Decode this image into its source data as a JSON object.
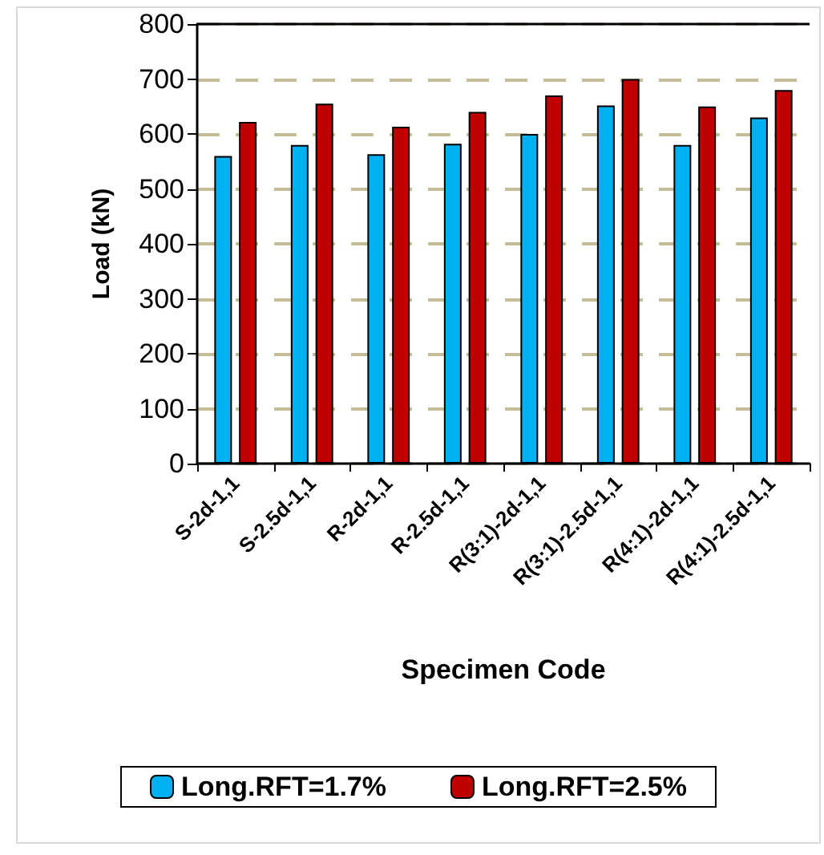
{
  "chart_data": {
    "type": "bar",
    "xlabel": "Specimen Code",
    "ylabel": "Load (kN)",
    "categories": [
      "S-2d-1,1",
      "S-2.5d-1,1",
      "R-2d-1,1",
      "R-2.5d-1,1",
      "R(3:1)-2d-1,1",
      "R(3:1)-2.5d-1,1",
      "R(4:1)-2d-1,1",
      "R(4:1)-2.5d-1,1"
    ],
    "series": [
      {
        "name": "Long.RFT=1.7%",
        "color": "#00b0f0",
        "values": [
          560,
          580,
          563,
          582,
          600,
          652,
          580,
          630
        ]
      },
      {
        "name": "Long.RFT=2.5%",
        "color": "#c00000",
        "values": [
          622,
          655,
          613,
          640,
          670,
          700,
          650,
          680
        ]
      }
    ],
    "ylim": [
      0,
      800
    ],
    "yticks": [
      0,
      100,
      200,
      300,
      400,
      500,
      600,
      700,
      800
    ],
    "grid": "y",
    "legend": "bottom"
  }
}
